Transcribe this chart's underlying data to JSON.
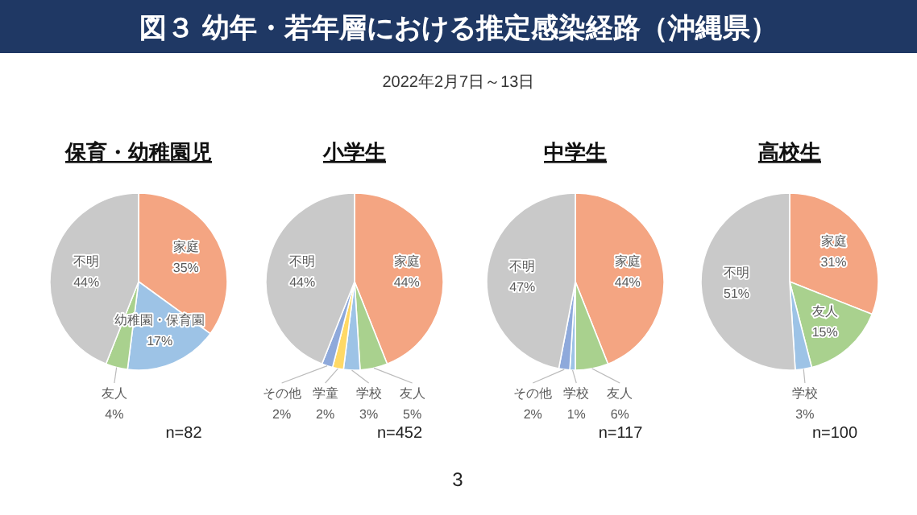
{
  "chart_data": [
    {
      "type": "other",
      "title": "図３ 幼年・若年層における推定感染経路（沖縄県）",
      "subtitle": "2022年2月7日～13日",
      "annotations": [
        "3"
      ]
    },
    {
      "type": "pie",
      "title": "保育・幼稚園児",
      "categories": [
        "家庭",
        "幼稚園・保育園",
        "友人",
        "不明"
      ],
      "values": [
        35,
        17,
        4,
        44
      ],
      "colors": [
        "#f4a582",
        "#9dc3e6",
        "#a9d18e",
        "#c9c9c9"
      ],
      "value_labels": [
        "35%",
        "17%",
        "4%",
        "44%"
      ],
      "annotations": [
        "n=82"
      ]
    },
    {
      "type": "pie",
      "title": "小学生",
      "categories": [
        "家庭",
        "友人",
        "学校",
        "学童",
        "その他",
        "不明"
      ],
      "values": [
        44,
        5,
        3,
        2,
        2,
        44
      ],
      "colors": [
        "#f4a582",
        "#a9d18e",
        "#9dc3e6",
        "#ffd966",
        "#8ea9db",
        "#c9c9c9"
      ],
      "value_labels": [
        "44%",
        "5%",
        "3%",
        "2%",
        "2%",
        "44%"
      ],
      "annotations": [
        "n=452"
      ]
    },
    {
      "type": "pie",
      "title": "中学生",
      "categories": [
        "家庭",
        "友人",
        "学校",
        "その他",
        "不明"
      ],
      "values": [
        44,
        6,
        1,
        2,
        47
      ],
      "colors": [
        "#f4a582",
        "#a9d18e",
        "#9dc3e6",
        "#8ea9db",
        "#c9c9c9"
      ],
      "value_labels": [
        "44%",
        "6%",
        "1%",
        "2%",
        "47%"
      ],
      "annotations": [
        "n=117"
      ]
    },
    {
      "type": "pie",
      "title": "高校生",
      "categories": [
        "家庭",
        "友人",
        "学校",
        "不明"
      ],
      "values": [
        31,
        15,
        3,
        51
      ],
      "colors": [
        "#f4a582",
        "#a9d18e",
        "#9dc3e6",
        "#c9c9c9"
      ],
      "value_labels": [
        "31%",
        "15%",
        "3%",
        "51%"
      ],
      "annotations": [
        "n=100"
      ]
    }
  ]
}
